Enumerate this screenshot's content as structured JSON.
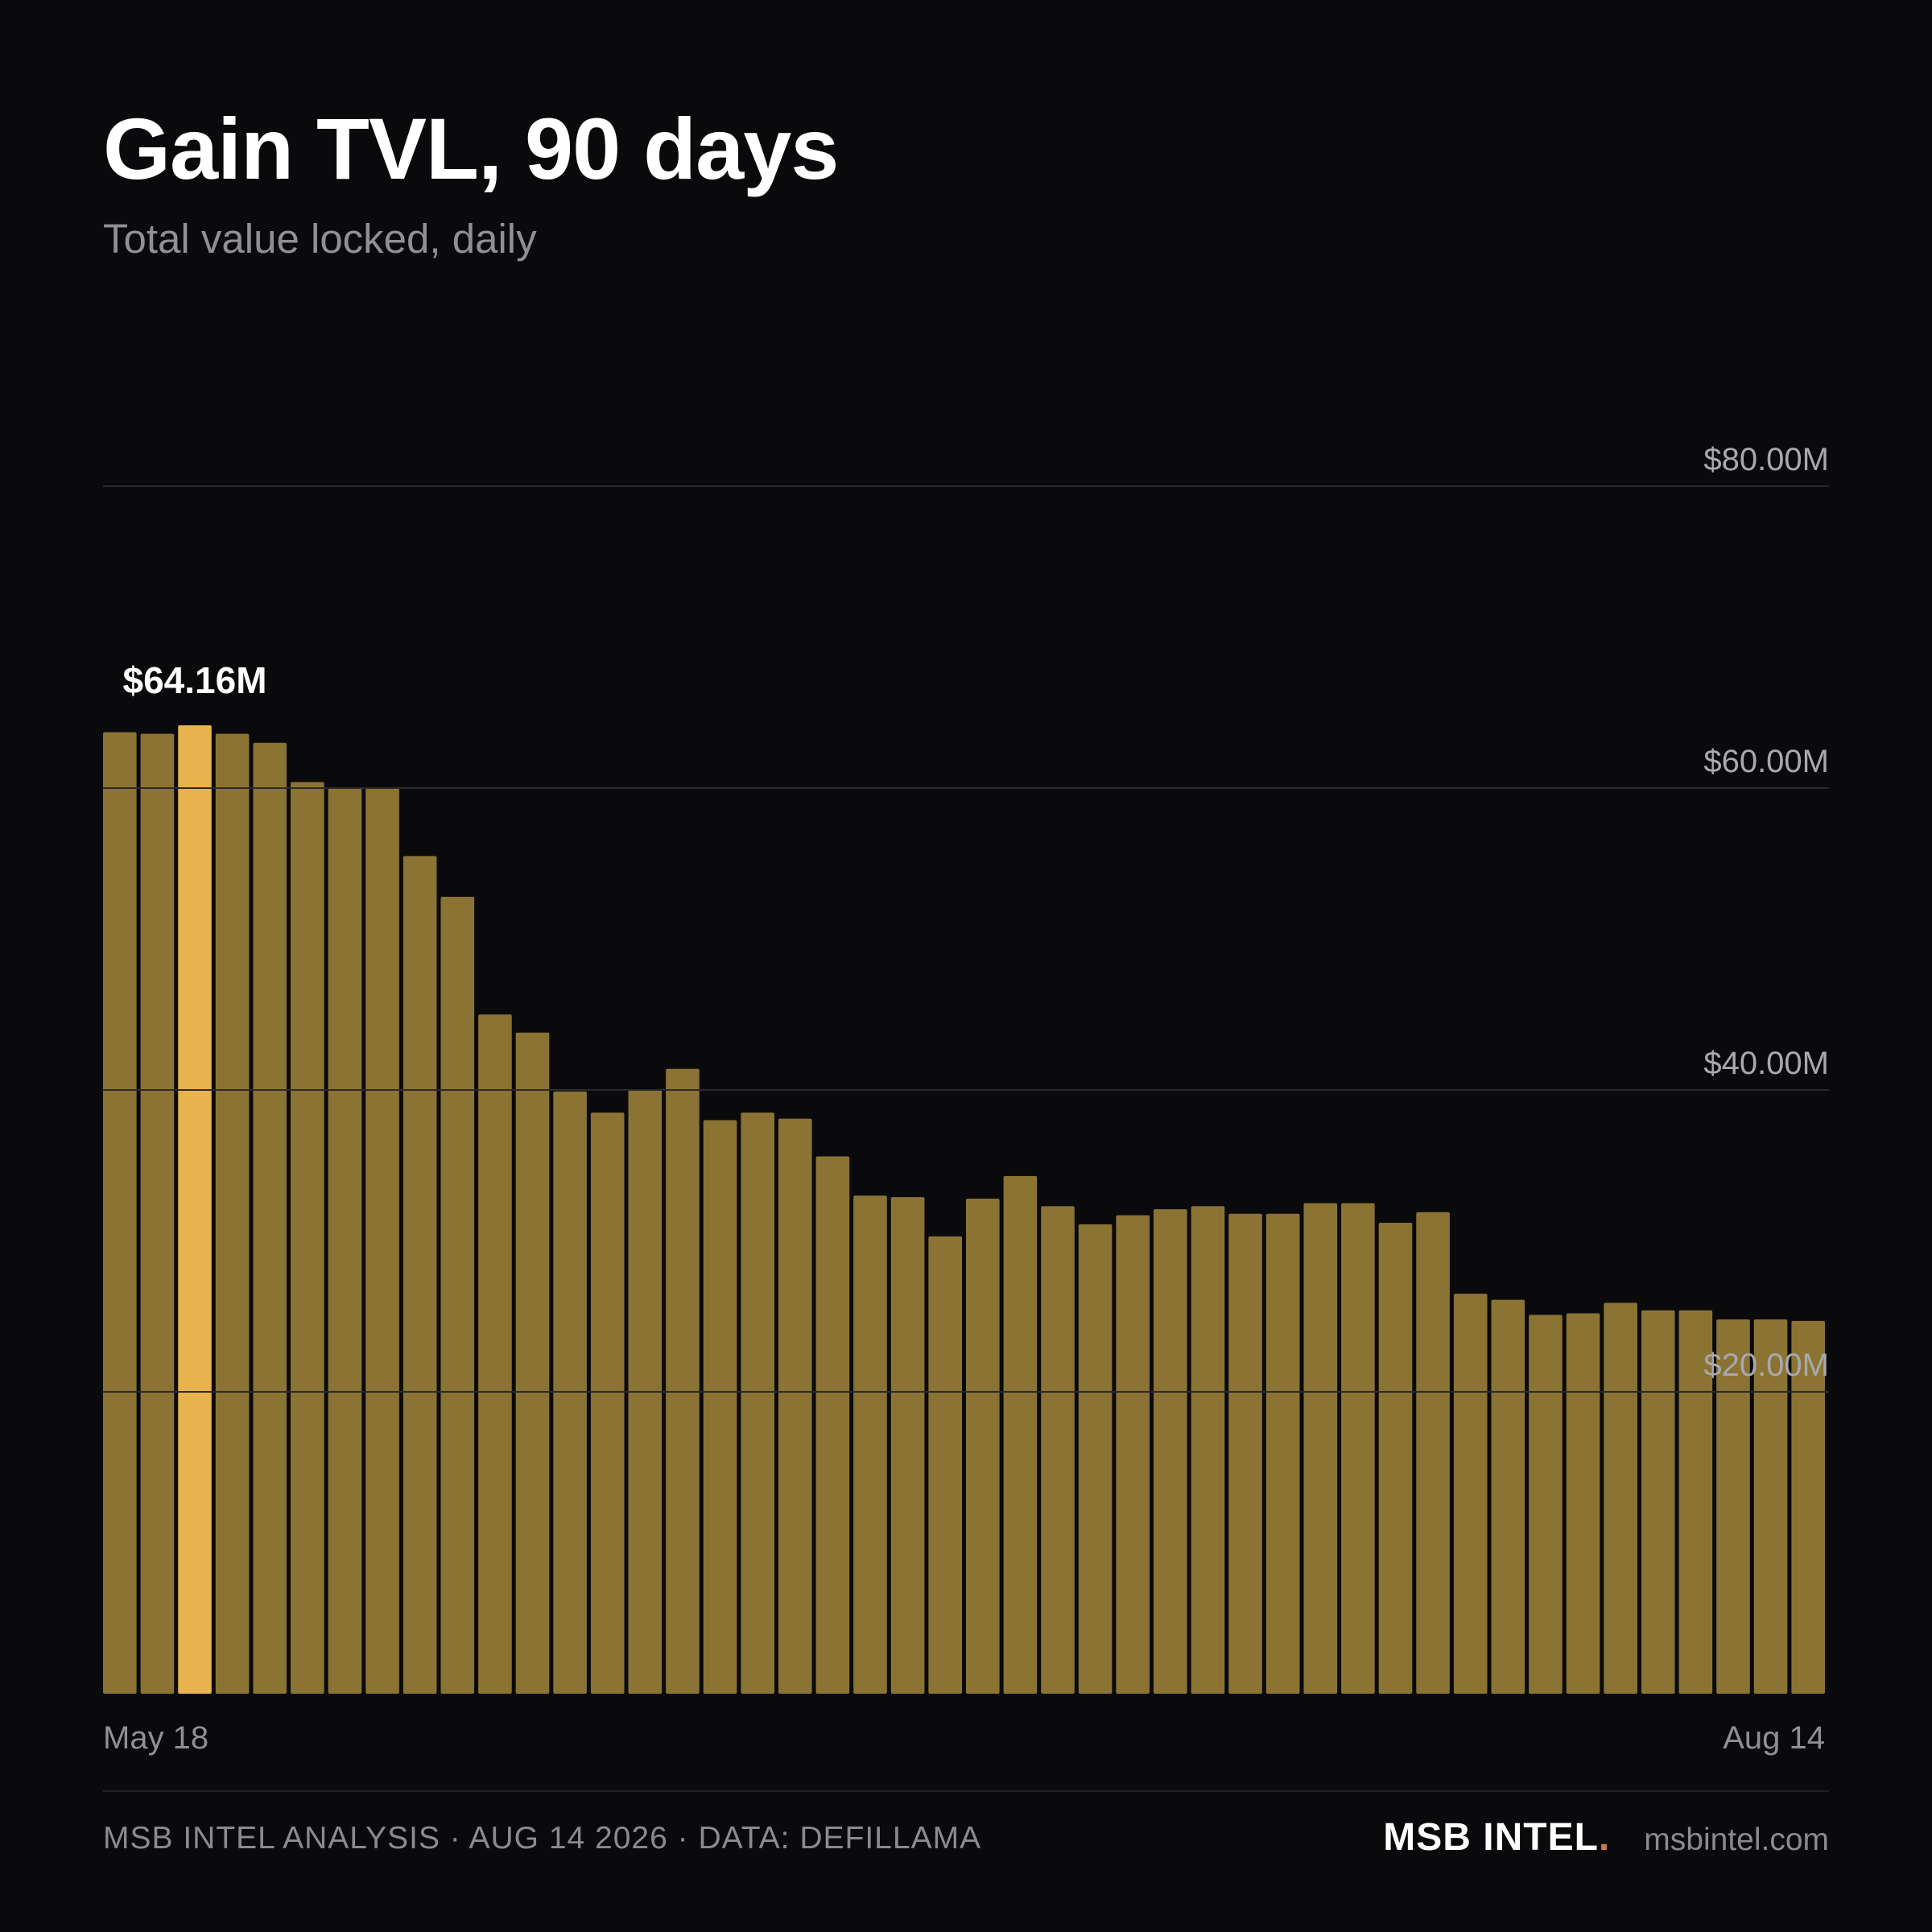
{
  "header": {
    "title": "Gain TVL, 90 days",
    "subtitle": "Total value locked, daily"
  },
  "colors": {
    "background": "#0a0a0c",
    "bar": "#8b7333",
    "bar_highlight": "#e8b24e",
    "gridline": "#2a2a2e",
    "axis_text": "#a8a8ae"
  },
  "chart_data": {
    "type": "bar",
    "title": "Gain TVL, 90 days",
    "subtitle": "Total value locked, daily",
    "xlabel": "",
    "ylabel": "",
    "ylim": [
      0,
      80
    ],
    "y_unit": "$M",
    "grid": true,
    "y_ticks": [
      {
        "value": 80,
        "label": "$80.00M"
      },
      {
        "value": 60,
        "label": "$60.00M"
      },
      {
        "value": 40,
        "label": "$40.00M"
      },
      {
        "value": 20,
        "label": "$20.00M"
      }
    ],
    "x_tick_labels": [
      {
        "index": 0,
        "label": "May 18",
        "anchor": "start"
      },
      {
        "index": 45,
        "label": "Aug 14",
        "anchor": "end"
      }
    ],
    "highlight": {
      "index": 2,
      "label": "$64.16M"
    },
    "values": [
      63.7,
      63.6,
      64.16,
      63.6,
      63.0,
      60.4,
      60.0,
      60.0,
      55.5,
      52.8,
      45.0,
      43.8,
      39.9,
      38.5,
      40.0,
      41.4,
      38.0,
      38.5,
      38.1,
      35.6,
      33.0,
      32.9,
      30.3,
      32.8,
      34.3,
      32.3,
      31.1,
      31.7,
      32.1,
      32.3,
      31.8,
      31.8,
      32.5,
      32.5,
      31.2,
      31.9,
      26.5,
      26.1,
      25.1,
      25.2,
      25.9,
      25.4,
      25.4,
      24.8,
      24.8,
      24.7
    ]
  },
  "footer": {
    "source": "MSB INTEL ANALYSIS · AUG 14 2026 · DATA: DEFILLAMA",
    "brand": "MSB INTEL",
    "brand_dot": ".",
    "site": "msbintel.com"
  }
}
